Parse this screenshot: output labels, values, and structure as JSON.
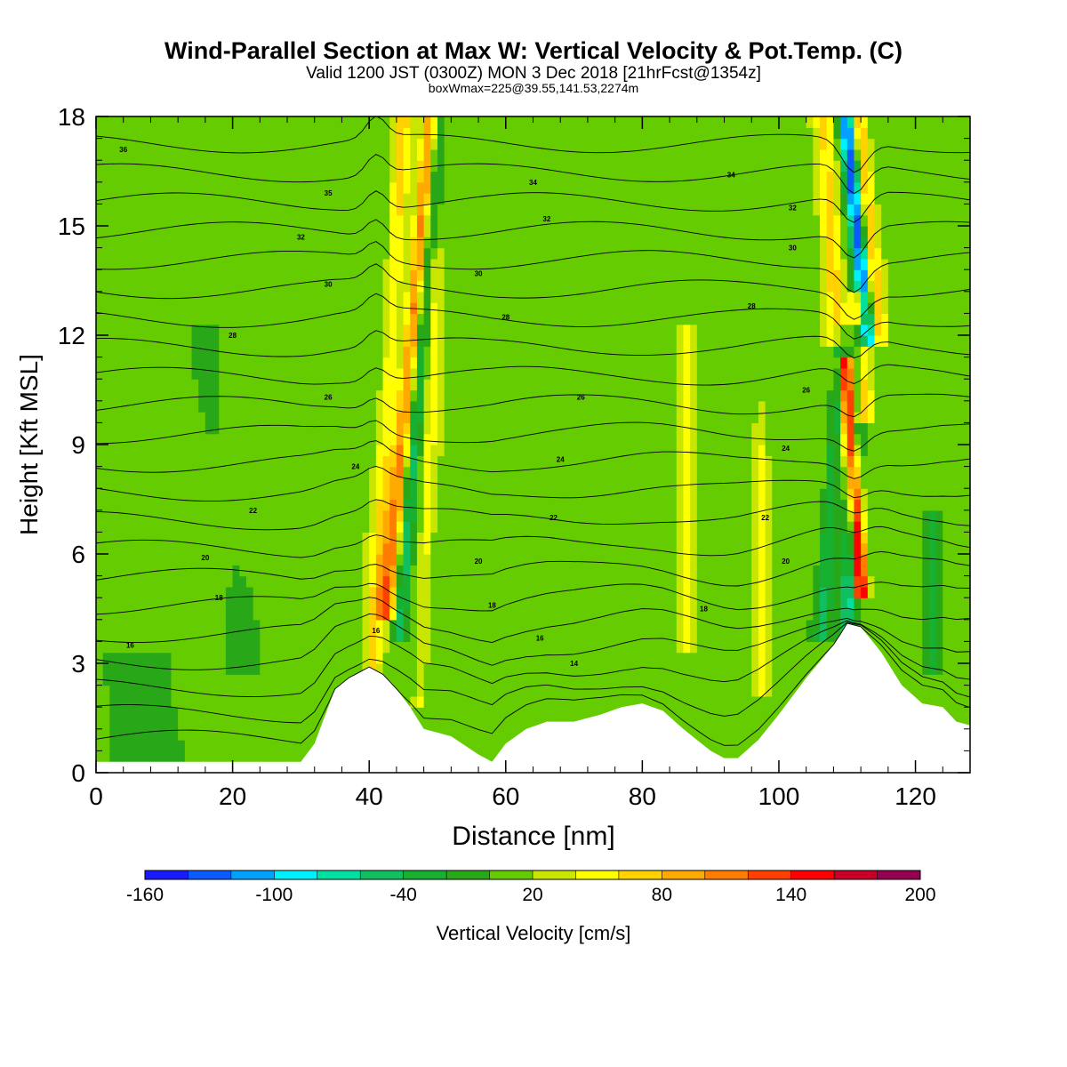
{
  "chart_data": {
    "type": "heatmap",
    "title": "Wind-Parallel Section at Max W: Vertical Velocity & Pot.Temp. (C)",
    "subtitle": "Valid 1200 JST (0300Z) MON 3 Dec 2018 [21hrFcst@1354z]",
    "subtitle2": "boxWmax=225@39.55,141.53,2274m",
    "xlabel": "Distance [nm]",
    "ylabel": "Height [Kft MSL]",
    "xlim": [
      0,
      128
    ],
    "ylim": [
      0,
      18
    ],
    "xticks": [
      "0",
      "20",
      "40",
      "60",
      "80",
      "100",
      "120"
    ],
    "yticks": [
      "0",
      "3",
      "6",
      "9",
      "12",
      "15",
      "18"
    ],
    "xtick_values": [
      0,
      20,
      40,
      60,
      80,
      100,
      120
    ],
    "ytick_values": [
      0,
      3,
      6,
      9,
      12,
      15,
      18
    ],
    "colorbar": {
      "label": "Vertical Velocity [cm/s]",
      "min": -160,
      "max": 200,
      "step": 20,
      "tick_labels": [
        "-160",
        "-100",
        "-40",
        "20",
        "80",
        "140",
        "200"
      ],
      "tick_values": [
        -160,
        -100,
        -40,
        20,
        80,
        140,
        200
      ],
      "colors": [
        "#1a1aff",
        "#0a5aff",
        "#00a0ff",
        "#00f0ff",
        "#00e0a0",
        "#10c060",
        "#18b030",
        "#28a818",
        "#64cc00",
        "#c8e600",
        "#ffff00",
        "#ffd200",
        "#ffaa00",
        "#ff7d00",
        "#ff4000",
        "#ff0000",
        "#c80028",
        "#960050"
      ]
    },
    "background_velocity_cm_s": 10,
    "terrain_profile": {
      "x": [
        0,
        30,
        32,
        35,
        37,
        40,
        42,
        44,
        46,
        48,
        52,
        56,
        58,
        60,
        63,
        66,
        70,
        74,
        77,
        80,
        83,
        86,
        88,
        90,
        92,
        94,
        97,
        100,
        104,
        108,
        110,
        112,
        115,
        118,
        121,
        124,
        126,
        128
      ],
      "y": [
        0.3,
        0.3,
        0.8,
        2.3,
        2.6,
        2.9,
        2.7,
        2.3,
        1.8,
        1.2,
        1.0,
        0.5,
        0.3,
        0.8,
        1.2,
        1.4,
        1.4,
        1.6,
        1.8,
        1.9,
        1.7,
        1.2,
        0.9,
        0.6,
        0.4,
        0.4,
        0.9,
        1.6,
        2.6,
        3.5,
        4.1,
        4.0,
        3.3,
        2.4,
        1.9,
        1.8,
        1.4,
        1.3
      ]
    },
    "velocity_features": [
      {
        "x": 40.5,
        "ybot": 2.9,
        "ytop": 18,
        "tilt": 0.3,
        "width": 1.2,
        "value": 50
      },
      {
        "x": 42.5,
        "ybot": 4.5,
        "ytop": 18,
        "tilt": 0.5,
        "width": 1.2,
        "value": 100
      },
      {
        "x": 44.5,
        "ybot": 4.0,
        "ytop": 18,
        "tilt": 0.4,
        "width": 1.0,
        "value": -60
      },
      {
        "x": 47.5,
        "ybot": 2.0,
        "ytop": 14,
        "tilt": 0.2,
        "width": 1.0,
        "value": 35
      },
      {
        "x": 86.5,
        "ybot": 3.5,
        "ytop": 12,
        "tilt": 0.0,
        "width": 1.2,
        "value": 40
      },
      {
        "x": 97.5,
        "ybot": 2.5,
        "ytop": 10,
        "tilt": 0.0,
        "width": 1.0,
        "value": 30
      },
      {
        "x": 106.5,
        "ybot": 4.0,
        "ytop": 12,
        "tilt": 0.3,
        "width": 1.0,
        "value": -50
      },
      {
        "x": 110.0,
        "ybot": 4.0,
        "ytop": 12,
        "tilt": 0.2,
        "width": 1.2,
        "value": -80
      },
      {
        "x": 112.0,
        "ybot": 5.0,
        "ytop": 11,
        "tilt": -0.35,
        "width": 1.0,
        "value": 180
      },
      {
        "x": 112.5,
        "ybot": 10.0,
        "ytop": 13,
        "tilt": -0.3,
        "width": 1.2,
        "value": 90
      },
      {
        "x": 113.2,
        "ybot": 12.0,
        "ytop": 18,
        "tilt": -0.55,
        "width": 1.2,
        "value": -150
      },
      {
        "x": 114.5,
        "ybot": 12.0,
        "ytop": 18,
        "tilt": -0.5,
        "width": 1.2,
        "value": 90
      },
      {
        "x": 108.5,
        "ybot": 12.0,
        "ytop": 18,
        "tilt": -0.3,
        "width": 1.5,
        "value": 60
      },
      {
        "x": 122.5,
        "ybot": 3.0,
        "ytop": 7,
        "tilt": 0.0,
        "width": 1.3,
        "value": -45
      },
      {
        "x": 5.0,
        "ybot": 0.3,
        "ytop": 3,
        "tilt": 0.0,
        "width": 6,
        "value": -25
      },
      {
        "x": 20.0,
        "ybot": 3.0,
        "ytop": 12,
        "tilt": 0.0,
        "width": 5,
        "value": -5
      }
    ],
    "theta_contours": {
      "count": 22,
      "labels": [
        {
          "x": 4,
          "y": 17.1,
          "text": "36"
        },
        {
          "x": 34,
          "y": 15.9,
          "text": "35"
        },
        {
          "x": 64,
          "y": 16.2,
          "text": "34"
        },
        {
          "x": 93,
          "y": 16.4,
          "text": "34"
        },
        {
          "x": 66,
          "y": 15.2,
          "text": "32"
        },
        {
          "x": 102,
          "y": 15.5,
          "text": "32"
        },
        {
          "x": 30,
          "y": 14.7,
          "text": "32"
        },
        {
          "x": 102,
          "y": 14.4,
          "text": "30"
        },
        {
          "x": 56,
          "y": 13.7,
          "text": "30"
        },
        {
          "x": 34,
          "y": 13.4,
          "text": "30"
        },
        {
          "x": 60,
          "y": 12.5,
          "text": "28"
        },
        {
          "x": 96,
          "y": 12.8,
          "text": "28"
        },
        {
          "x": 20,
          "y": 12.0,
          "text": "28"
        },
        {
          "x": 104,
          "y": 10.5,
          "text": "26"
        },
        {
          "x": 34,
          "y": 10.3,
          "text": "26"
        },
        {
          "x": 71,
          "y": 10.3,
          "text": "26"
        },
        {
          "x": 101,
          "y": 8.9,
          "text": "24"
        },
        {
          "x": 68,
          "y": 8.6,
          "text": "24"
        },
        {
          "x": 38,
          "y": 8.4,
          "text": "24"
        },
        {
          "x": 23,
          "y": 7.2,
          "text": "22"
        },
        {
          "x": 67,
          "y": 7.0,
          "text": "22"
        },
        {
          "x": 98,
          "y": 7.0,
          "text": "22"
        },
        {
          "x": 16,
          "y": 5.9,
          "text": "20"
        },
        {
          "x": 56,
          "y": 5.8,
          "text": "20"
        },
        {
          "x": 101,
          "y": 5.8,
          "text": "20"
        },
        {
          "x": 18,
          "y": 4.8,
          "text": "18"
        },
        {
          "x": 58,
          "y": 4.6,
          "text": "18"
        },
        {
          "x": 89,
          "y": 4.5,
          "text": "18"
        },
        {
          "x": 5,
          "y": 3.5,
          "text": "16"
        },
        {
          "x": 41,
          "y": 3.9,
          "text": "16"
        },
        {
          "x": 65,
          "y": 3.7,
          "text": "16"
        },
        {
          "x": 70,
          "y": 3.0,
          "text": "14"
        }
      ]
    }
  }
}
